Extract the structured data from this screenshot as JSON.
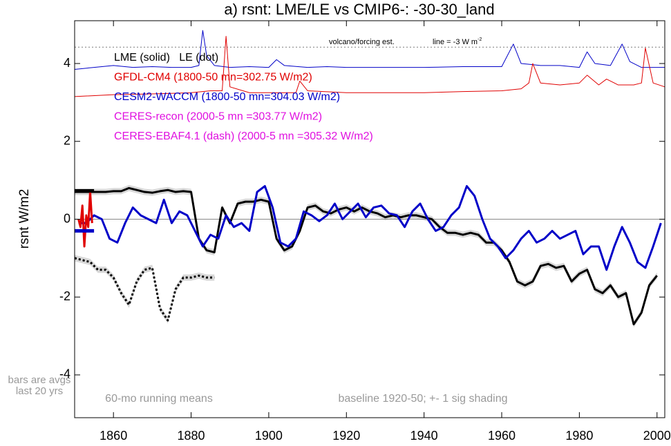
{
  "chart_data": {
    "type": "line",
    "title": "a) rsnt: LME/LE vs CMIP6-: -30-30_land",
    "y_label": "rsnt W/m2",
    "xlim": [
      1850,
      2002
    ],
    "ylim": [
      -5.1,
      5.1
    ],
    "xticks": [
      1860,
      1880,
      1900,
      1920,
      1940,
      1960,
      1980,
      2000
    ],
    "yticks": [
      -4,
      -2,
      0,
      2,
      4
    ],
    "hline": 0,
    "ref_line": 4.42,
    "legend": [
      {
        "text": "LME (solid)   LE (dot)",
        "color": "#000000"
      },
      {
        "text": "GFDL-CM4 (1800-50 mn=302.75 W/m2)",
        "color": "#e00000"
      },
      {
        "text": "CESM2-WACCM (1800-50 mn=304.03 W/m2)",
        "color": "#0000c8"
      },
      {
        "text": "CERES-recon (2000-5 mn =303.77 W/m2)",
        "color": "#e010e0"
      },
      {
        "text": "CERES-EBAF4.1 (dash) (2000-5 mn =305.32 W/m2)",
        "color": "#e010e0"
      }
    ],
    "annotations": {
      "volcano": "volcano/forcing est.",
      "line_note": "line = -3 W m",
      "line_note_sup": "-2",
      "bars1": "bars are avgs",
      "bars2": "last 20 yrs",
      "running": "60-mo running means",
      "baseline": "baseline 1920-50; +- 1 sig shading"
    },
    "series": [
      {
        "color": "#000000",
        "style": "solid",
        "shade": 0.08,
        "x": [
          1850,
          1852,
          1854,
          1856,
          1858,
          1860,
          1862,
          1864,
          1866,
          1868,
          1870,
          1872,
          1874,
          1876,
          1878,
          1880,
          1882,
          1884,
          1886,
          1888,
          1890,
          1892,
          1894,
          1896,
          1898,
          1900,
          1902,
          1904,
          1906,
          1908,
          1910,
          1912,
          1914,
          1916,
          1918,
          1920,
          1922,
          1924,
          1926,
          1928,
          1930,
          1932,
          1934,
          1936,
          1938,
          1940,
          1942,
          1944,
          1946,
          1948,
          1950,
          1952,
          1954,
          1956,
          1958,
          1960,
          1962,
          1964,
          1966,
          1968,
          1970,
          1972,
          1974,
          1976,
          1978,
          1980,
          1982,
          1984,
          1986,
          1988,
          1990,
          1992,
          1994,
          1996,
          1998,
          2000
        ],
        "values": [
          0.7,
          0.7,
          0.7,
          0.7,
          0.7,
          0.72,
          0.72,
          0.8,
          0.75,
          0.7,
          0.68,
          0.72,
          0.75,
          0.7,
          0.72,
          0.7,
          -0.5,
          -0.8,
          -0.85,
          0.3,
          -0.1,
          0.4,
          0.45,
          0.45,
          0.5,
          0.45,
          -0.5,
          -0.8,
          -0.7,
          -0.3,
          0.3,
          0.35,
          0.2,
          0.15,
          0.25,
          0.3,
          0.2,
          0.3,
          0.2,
          0.15,
          0.05,
          0.1,
          0.05,
          0.1,
          0.1,
          0.05,
          0.0,
          -0.2,
          -0.35,
          -0.35,
          -0.4,
          -0.35,
          -0.4,
          -0.6,
          -0.6,
          -0.8,
          -1.1,
          -1.6,
          -1.7,
          -1.6,
          -1.2,
          -1.15,
          -1.25,
          -1.2,
          -1.6,
          -1.4,
          -1.3,
          -1.8,
          -1.9,
          -1.7,
          -2.0,
          -1.9,
          -2.7,
          -2.4,
          -1.7,
          -1.45
        ]
      },
      {
        "color": "#0000c8",
        "style": "solid",
        "x": [
          1851,
          1853,
          1855,
          1857,
          1859,
          1861,
          1863,
          1865,
          1867,
          1869,
          1871,
          1873,
          1875,
          1877,
          1879,
          1881,
          1883,
          1885,
          1887,
          1889,
          1891,
          1893,
          1895,
          1897,
          1899,
          1901,
          1903,
          1905,
          1907,
          1909,
          1911,
          1913,
          1915,
          1917,
          1919,
          1921,
          1923,
          1925,
          1927,
          1929,
          1931,
          1933,
          1935,
          1937,
          1939,
          1941,
          1943,
          1945,
          1947,
          1949,
          1951,
          1953,
          1955,
          1957,
          1959,
          1961,
          1963,
          1965,
          1967,
          1969,
          1971,
          1973,
          1975,
          1977,
          1979,
          1981,
          1983,
          1985,
          1987,
          1989,
          1991,
          1993,
          1995,
          1997,
          1999,
          2001
        ],
        "values": [
          -0.1,
          -0.1,
          0.1,
          0.0,
          -0.5,
          -0.6,
          -0.1,
          0.3,
          0.1,
          0.0,
          -0.1,
          0.5,
          -0.1,
          0.2,
          0.1,
          -0.3,
          -0.7,
          -0.4,
          -0.5,
          0.1,
          -0.2,
          -0.1,
          -0.3,
          0.7,
          0.85,
          0.3,
          -0.6,
          -0.7,
          -0.5,
          0.2,
          0.1,
          -0.05,
          0.1,
          0.4,
          0.0,
          0.2,
          0.4,
          0.05,
          0.3,
          0.35,
          0.15,
          0.1,
          -0.2,
          0.2,
          0.4,
          0.0,
          -0.3,
          -0.2,
          0.1,
          0.3,
          0.85,
          0.6,
          0.0,
          -0.5,
          -0.7,
          -1.0,
          -0.8,
          -0.5,
          -0.3,
          -0.6,
          -0.5,
          -0.3,
          -0.5,
          -0.4,
          -0.3,
          -0.9,
          -0.7,
          -0.7,
          -1.3,
          -0.7,
          -0.2,
          -0.6,
          -1.1,
          -1.25,
          -0.7,
          -0.1
        ]
      },
      {
        "color": "#000000",
        "style": "dot",
        "shade": 0.08,
        "x": [
          1850,
          1852,
          1854,
          1856,
          1858,
          1860,
          1862,
          1864,
          1866,
          1868,
          1870,
          1872,
          1874,
          1876,
          1878,
          1880,
          1882,
          1884,
          1886
        ],
        "values": [
          -1.0,
          -1.05,
          -1.1,
          -1.3,
          -1.3,
          -1.5,
          -1.9,
          -2.2,
          -1.6,
          -1.3,
          -1.25,
          -2.3,
          -2.6,
          -1.8,
          -1.5,
          -1.5,
          -1.45,
          -1.5,
          -1.5
        ]
      },
      {
        "color": "#e00000",
        "style": "solid",
        "x": [
          1851,
          1851.5,
          1852,
          1852.5,
          1853,
          1853.5,
          1854,
          1854.5
        ],
        "values": [
          0,
          -0.2,
          0.35,
          -0.7,
          0.1,
          -0.2,
          0.7,
          -0.1
        ]
      },
      {
        "color": "#0000c8",
        "style": "thin",
        "x": [
          1850,
          1855,
          1860,
          1865,
          1870,
          1875,
          1880,
          1882,
          1883,
          1884,
          1886,
          1890,
          1895,
          1900,
          1902,
          1904,
          1910,
          1915,
          1920,
          1930,
          1940,
          1950,
          1960,
          1963,
          1965,
          1970,
          1975,
          1980,
          1982,
          1984,
          1988,
          1991,
          1993,
          1996,
          2002
        ],
        "values": [
          3.85,
          3.9,
          3.95,
          3.9,
          3.92,
          3.9,
          3.9,
          3.95,
          4.85,
          4.2,
          3.95,
          3.9,
          3.92,
          3.9,
          4.1,
          3.95,
          3.9,
          3.92,
          3.9,
          3.9,
          3.9,
          3.92,
          3.92,
          4.5,
          4.0,
          3.95,
          3.95,
          3.9,
          4.3,
          4.0,
          3.95,
          4.5,
          4.05,
          3.9,
          3.9
        ]
      },
      {
        "color": "#e00000",
        "style": "thin",
        "x": [
          1850,
          1860,
          1870,
          1880,
          1885,
          1888,
          1889,
          1890,
          1895,
          1900,
          1907,
          1908,
          1910,
          1920,
          1930,
          1940,
          1950,
          1960,
          1965,
          1967,
          1968,
          1970,
          1975,
          1980,
          1982,
          1985,
          1987,
          1990,
          1994,
          1996,
          1997,
          1999,
          2002
        ],
        "values": [
          3.15,
          3.2,
          3.22,
          3.25,
          3.3,
          3.3,
          4.7,
          3.4,
          3.25,
          3.25,
          3.25,
          3.55,
          3.3,
          3.25,
          3.25,
          3.25,
          3.28,
          3.3,
          3.35,
          3.5,
          4.0,
          3.5,
          3.45,
          3.5,
          3.7,
          3.45,
          3.6,
          3.45,
          3.45,
          3.5,
          4.4,
          3.5,
          3.4
        ]
      }
    ],
    "bars": [
      {
        "color": "#000000",
        "value": 0.73,
        "x": [
          1850,
          1855
        ]
      },
      {
        "color": "#0000c8",
        "value": -0.3,
        "x": [
          1850,
          1855
        ]
      }
    ]
  }
}
